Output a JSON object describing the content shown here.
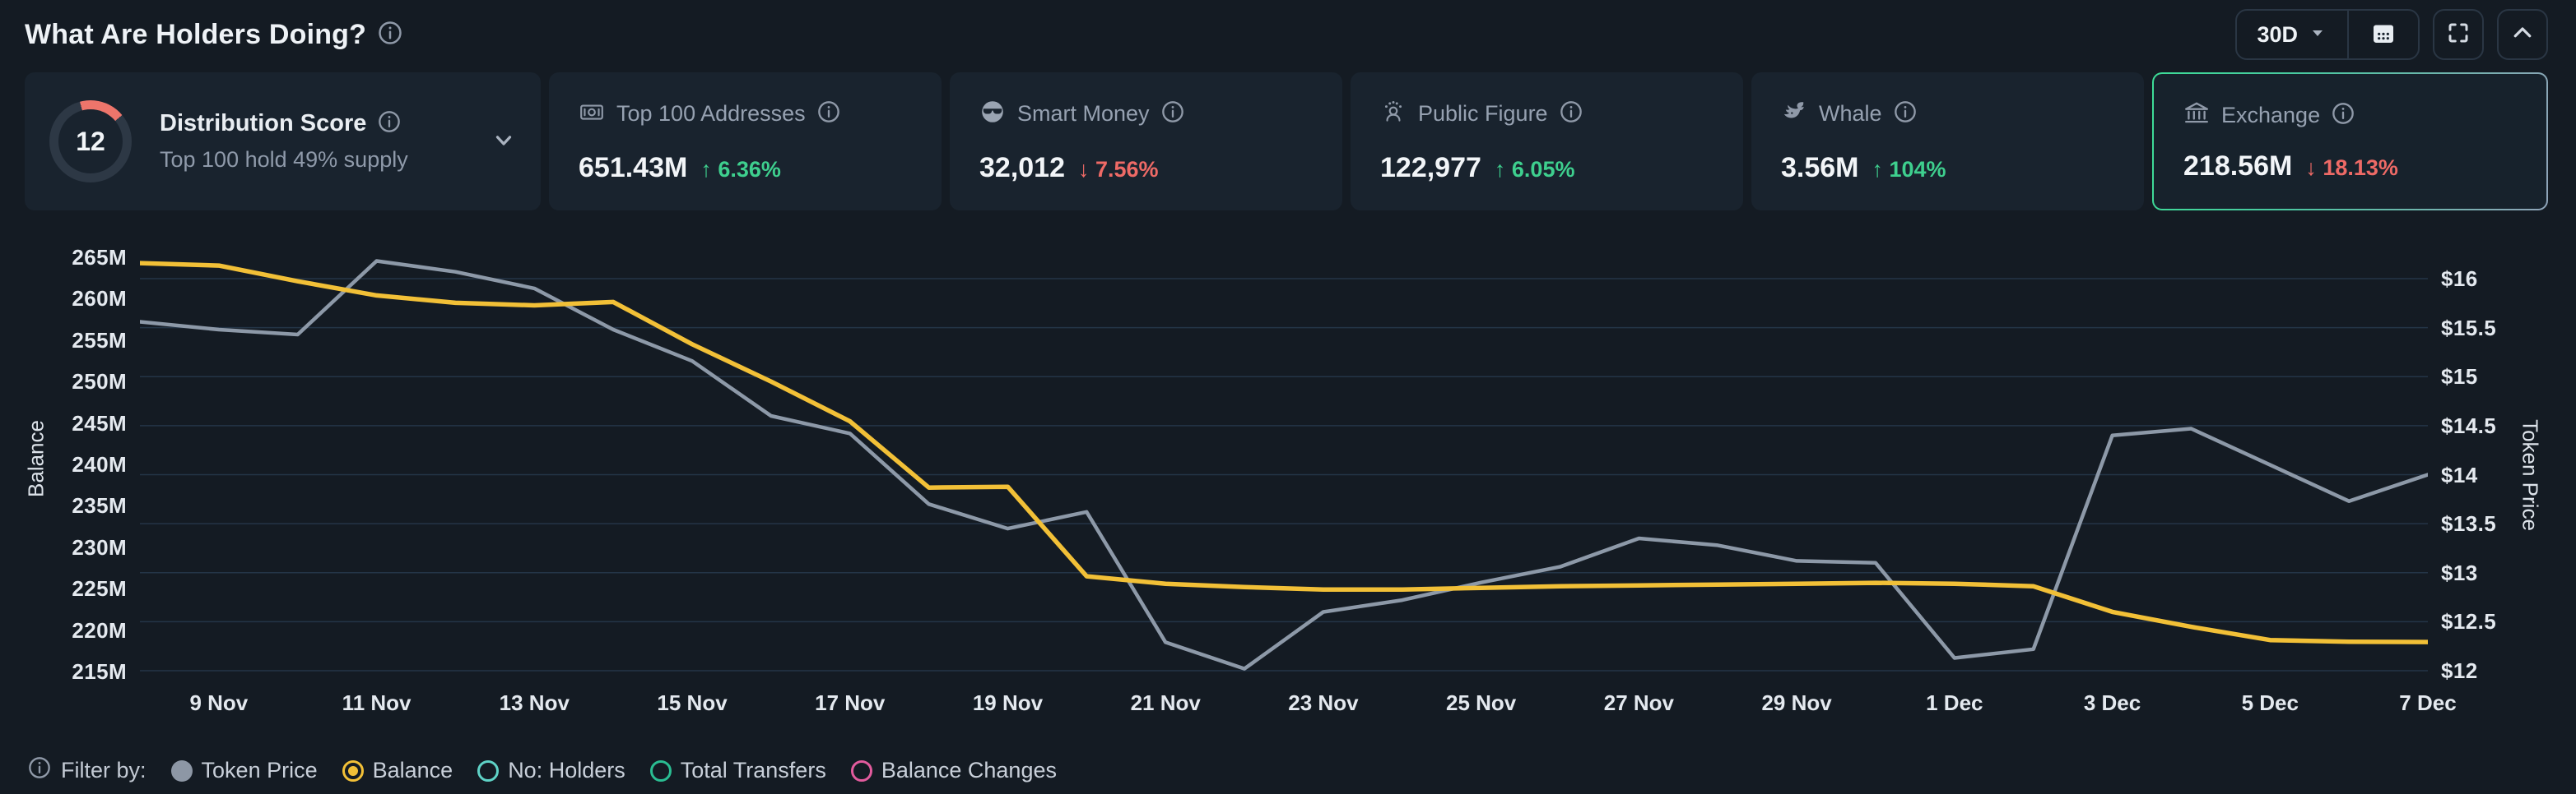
{
  "header": {
    "title": "What Are Holders Doing?",
    "range_selector": "30D"
  },
  "cards": [
    {
      "label": "Distribution Score",
      "score": "12",
      "subtitle": "Top 100 hold 49% supply"
    },
    {
      "icon": "money-icon",
      "label": "Top 100 Addresses",
      "value": "651.43M",
      "change": "↑ 6.36%",
      "trend": "up"
    },
    {
      "icon": "smart-money-icon",
      "label": "Smart Money",
      "value": "32,012",
      "change": "↓ 7.56%",
      "trend": "down"
    },
    {
      "icon": "public-figure-icon",
      "label": "Public Figure",
      "value": "122,977",
      "change": "↑ 6.05%",
      "trend": "up"
    },
    {
      "icon": "whale-icon",
      "label": "Whale",
      "value": "3.56M",
      "change": "↑ 104%",
      "trend": "up"
    },
    {
      "icon": "exchange-icon",
      "label": "Exchange",
      "value": "218.56M",
      "change": "↓ 18.13%",
      "trend": "down",
      "selected": true
    }
  ],
  "chart_data": {
    "type": "line",
    "x": [
      "8 Nov",
      "9 Nov",
      "10 Nov",
      "11 Nov",
      "12 Nov",
      "13 Nov",
      "14 Nov",
      "15 Nov",
      "16 Nov",
      "17 Nov",
      "18 Nov",
      "19 Nov",
      "20 Nov",
      "21 Nov",
      "22 Nov",
      "23 Nov",
      "24 Nov",
      "25 Nov",
      "26 Nov",
      "27 Nov",
      "28 Nov",
      "29 Nov",
      "30 Nov",
      "1 Dec",
      "2 Dec",
      "3 Dec",
      "4 Dec",
      "5 Dec",
      "6 Dec",
      "7 Dec"
    ],
    "x_ticks": [
      "9 Nov",
      "11 Nov",
      "13 Nov",
      "15 Nov",
      "17 Nov",
      "19 Nov",
      "21 Nov",
      "23 Nov",
      "25 Nov",
      "27 Nov",
      "29 Nov",
      "1 Dec",
      "3 Dec",
      "5 Dec",
      "7 Dec"
    ],
    "series": [
      {
        "name": "Balance",
        "axis": "left",
        "unit": "M",
        "color": "#f2c037",
        "values": [
          264.3,
          264.0,
          262.1,
          260.4,
          259.5,
          259.2,
          259.6,
          254.5,
          250.0,
          245.2,
          237.2,
          237.3,
          226.5,
          225.6,
          225.2,
          224.9,
          224.9,
          225.1,
          225.3,
          225.4,
          225.5,
          225.6,
          225.7,
          225.6,
          225.3,
          222.2,
          220.4,
          218.8,
          218.6,
          218.56
        ]
      },
      {
        "name": "Token Price",
        "axis": "right",
        "unit": "$",
        "color": "#8d99a8",
        "values": [
          15.56,
          15.48,
          15.43,
          16.18,
          16.07,
          15.9,
          15.48,
          15.16,
          14.6,
          14.42,
          13.7,
          13.45,
          13.62,
          12.29,
          12.02,
          12.6,
          12.72,
          12.9,
          13.06,
          13.35,
          13.28,
          13.12,
          13.1,
          12.13,
          12.22,
          14.4,
          14.47,
          14.1,
          13.73,
          14.0
        ]
      }
    ],
    "left_axis": {
      "label": "Balance",
      "min": 215,
      "max": 265,
      "ticks": [
        "265M",
        "260M",
        "255M",
        "250M",
        "245M",
        "240M",
        "235M",
        "230M",
        "225M",
        "220M",
        "215M"
      ]
    },
    "right_axis": {
      "label": "Token Price",
      "min": 12,
      "max": 16,
      "ticks": [
        "$16",
        "$15.5",
        "$15",
        "$14.5",
        "$14",
        "$13.5",
        "$13",
        "$12.5",
        "$12"
      ]
    },
    "grid": "horizontal",
    "legend_position": "bottom"
  },
  "legend": {
    "prefix": "Filter by:",
    "items": [
      {
        "label": "Token Price",
        "color": "#8d97a5",
        "style": "filled"
      },
      {
        "label": "Balance",
        "color": "#f2c037",
        "style": "selected"
      },
      {
        "label": "No: Holders",
        "color": "#5fd3c7",
        "style": "ring"
      },
      {
        "label": "Total Transfers",
        "color": "#2abd92",
        "style": "ring"
      },
      {
        "label": "Balance Changes",
        "color": "#e25b9d",
        "style": "ring"
      }
    ]
  },
  "colors": {
    "background": "#141b23",
    "card_background": "#19232e",
    "selected_card_border": "#3ddc97",
    "positive": "#3ecf8e",
    "negative": "#ee6a66",
    "balance_line": "#f2c037",
    "price_line": "#8d99a8",
    "gauge_arc": "#ed756b"
  }
}
